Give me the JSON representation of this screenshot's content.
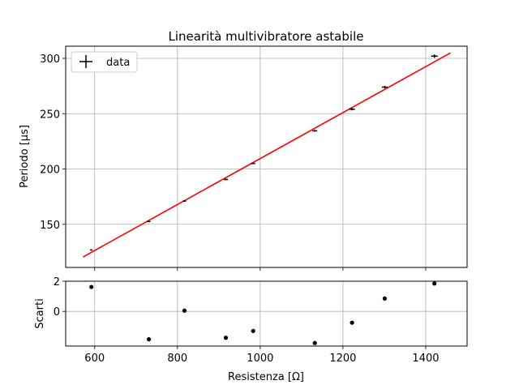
{
  "chart_data": [
    {
      "type": "scatter",
      "title": "Linearità multivibratore astabile",
      "xlabel": "",
      "ylabel": "Periodo [μs]",
      "xlim": [
        530,
        1500
      ],
      "ylim": [
        111,
        311
      ],
      "grid": true,
      "legend": {
        "position": "top-left",
        "entries": [
          "data"
        ]
      },
      "x_ticks": [
        600,
        800,
        1000,
        1200,
        1400
      ],
      "y_ticks": [
        150,
        200,
        250,
        300
      ],
      "y_tick_labels": [
        "150",
        "200",
        "250",
        "300"
      ],
      "series": [
        {
          "name": "data",
          "style": "errorbar",
          "color": "#000000",
          "x": [
            592,
            731,
            817,
            917,
            983,
            1132,
            1222,
            1301,
            1421
          ],
          "y": [
            126.8,
            152.5,
            171.0,
            190.5,
            205.0,
            234.5,
            254.0,
            274.0,
            302.0
          ],
          "xerr": [
            3,
            4,
            4,
            5,
            5,
            6,
            7,
            7,
            8
          ],
          "yerr": [
            0.5,
            0.5,
            0.5,
            0.6,
            0.6,
            0.8,
            1.0,
            1.2,
            1.5
          ]
        },
        {
          "style": "line",
          "color": "#ff0000",
          "x": [
            572,
            1460
          ],
          "y": [
            120.5,
            305.0
          ]
        }
      ]
    },
    {
      "type": "scatter",
      "title": "",
      "xlabel": "Resistenza [Ω]",
      "ylabel": "Scarti",
      "xlim": [
        530,
        1500
      ],
      "ylim": [
        -2.3,
        2.0
      ],
      "grid": true,
      "x_ticks": [
        600,
        800,
        1000,
        1200,
        1400
      ],
      "x_tick_labels": [
        "600",
        "800",
        "1000",
        "1200",
        "1400"
      ],
      "y_ticks": [
        0,
        2
      ],
      "y_tick_labels": [
        "0",
        "2"
      ],
      "series": [
        {
          "color": "#000000",
          "x": [
            592,
            731,
            817,
            917,
            983,
            1132,
            1222,
            1301,
            1421
          ],
          "y": [
            1.62,
            -1.85,
            0.05,
            -1.75,
            -1.3,
            -2.1,
            -0.75,
            0.85,
            1.85
          ]
        }
      ]
    }
  ]
}
